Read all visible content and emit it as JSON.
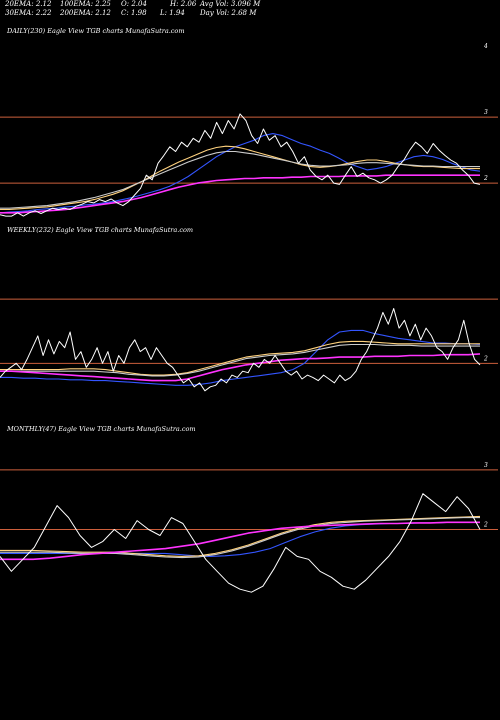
{
  "header": {
    "ema20": "20EMA: 2.12",
    "ema100": "100EMA: 2.25",
    "open": "O: 2.04",
    "high": "H: 2.06",
    "avg_vol": "Avg Vol: 3.096  M",
    "ema30": "30EMA: 2.22",
    "ema200": "200EMA: 2.12",
    "close": "C: 1.98",
    "low": "L: 1.94",
    "day_vol": "Day Vol: 2.68  M"
  },
  "chart_data": [
    {
      "type": "line",
      "title": "DAILY(230) Eagle  View  TGB charts MunafaSutra.com",
      "y_ticks": [
        "4",
        "3",
        "2"
      ],
      "y_tick_values": [
        4,
        3,
        2
      ],
      "ylim": [
        1.35,
        4.2
      ],
      "h_lines": [
        3.0,
        2.0
      ],
      "line_color": "#cd5f3c",
      "series": [
        {
          "color": "#ffffff",
          "values": [
            1.52,
            1.5,
            1.5,
            1.55,
            1.5,
            1.55,
            1.58,
            1.54,
            1.58,
            1.62,
            1.6,
            1.62,
            1.6,
            1.65,
            1.68,
            1.72,
            1.7,
            1.75,
            1.72,
            1.76,
            1.7,
            1.66,
            1.72,
            1.82,
            1.92,
            2.12,
            2.05,
            2.3,
            2.42,
            2.55,
            2.48,
            2.62,
            2.55,
            2.68,
            2.62,
            2.8,
            2.68,
            2.92,
            2.75,
            2.95,
            2.82,
            3.05,
            2.95,
            2.72,
            2.6,
            2.82,
            2.65,
            2.72,
            2.55,
            2.62,
            2.48,
            2.3,
            2.4,
            2.2,
            2.1,
            2.05,
            2.12,
            2.0,
            1.98,
            2.12,
            2.25,
            2.1,
            2.15,
            2.08,
            2.05,
            2.0,
            2.05,
            2.12,
            2.25,
            2.35,
            2.5,
            2.62,
            2.55,
            2.45,
            2.6,
            2.5,
            2.42,
            2.35,
            2.3,
            2.2,
            2.12,
            2.0,
            1.98
          ]
        },
        {
          "color": "#3355ff",
          "values": [
            1.55,
            1.56,
            1.57,
            1.58,
            1.6,
            1.61,
            1.62,
            1.64,
            1.65,
            1.67,
            1.68,
            1.7,
            1.72,
            1.75,
            1.78,
            1.82,
            1.86,
            1.9,
            1.95,
            2.02,
            2.1,
            2.2,
            2.3,
            2.4,
            2.48,
            2.55,
            2.6,
            2.65,
            2.72,
            2.75,
            2.72,
            2.66,
            2.6,
            2.56,
            2.5,
            2.45,
            2.38,
            2.3,
            2.25,
            2.2,
            2.22,
            2.25,
            2.3,
            2.35,
            2.4,
            2.42,
            2.4,
            2.36,
            2.3,
            2.25,
            2.2,
            2.18
          ]
        },
        {
          "color": "#ffd27f",
          "values": [
            1.6,
            1.6,
            1.61,
            1.62,
            1.63,
            1.64,
            1.66,
            1.68,
            1.7,
            1.72,
            1.75,
            1.79,
            1.83,
            1.88,
            1.95,
            2.02,
            2.1,
            2.18,
            2.25,
            2.32,
            2.38,
            2.44,
            2.5,
            2.54,
            2.56,
            2.55,
            2.52,
            2.48,
            2.44,
            2.4,
            2.36,
            2.32,
            2.28,
            2.25,
            2.24,
            2.25,
            2.27,
            2.3,
            2.33,
            2.35,
            2.35,
            2.33,
            2.3,
            2.28,
            2.26,
            2.25,
            2.25,
            2.24,
            2.23,
            2.22,
            2.22,
            2.22
          ]
        },
        {
          "color": "#cccccc",
          "values": [
            1.62,
            1.62,
            1.63,
            1.64,
            1.65,
            1.66,
            1.68,
            1.7,
            1.72,
            1.75,
            1.78,
            1.82,
            1.86,
            1.9,
            1.96,
            2.02,
            2.08,
            2.14,
            2.2,
            2.26,
            2.32,
            2.37,
            2.42,
            2.46,
            2.48,
            2.48,
            2.46,
            2.44,
            2.41,
            2.38,
            2.35,
            2.32,
            2.29,
            2.27,
            2.26,
            2.26,
            2.27,
            2.28,
            2.3,
            2.31,
            2.31,
            2.3,
            2.29,
            2.28,
            2.27,
            2.26,
            2.26,
            2.25,
            2.25,
            2.25,
            2.25,
            2.25
          ]
        },
        {
          "color": "#ff33ff",
          "values": [
            1.55,
            1.55,
            1.55,
            1.56,
            1.57,
            1.58,
            1.59,
            1.6,
            1.62,
            1.64,
            1.66,
            1.68,
            1.7,
            1.72,
            1.75,
            1.78,
            1.82,
            1.86,
            1.9,
            1.94,
            1.97,
            2.0,
            2.02,
            2.04,
            2.05,
            2.06,
            2.07,
            2.07,
            2.08,
            2.08,
            2.08,
            2.09,
            2.09,
            2.1,
            2.1,
            2.1,
            2.1,
            2.11,
            2.11,
            2.11,
            2.11,
            2.12,
            2.12,
            2.12,
            2.12,
            2.12,
            2.12,
            2.12,
            2.12,
            2.12,
            2.12,
            2.12
          ]
        }
      ]
    },
    {
      "type": "line",
      "title": "WEEKLY(232) Eagle  View  TGB charts MunafaSutra.com",
      "y_ticks": [
        "2"
      ],
      "y_tick_values": [
        2
      ],
      "ylim": [
        1.2,
        3.6
      ],
      "h_lines": [
        2.82,
        2.0
      ],
      "line_color": "#cd5f3c",
      "series": [
        {
          "color": "#ffffff",
          "values": [
            1.82,
            1.9,
            1.95,
            2.0,
            1.92,
            2.05,
            2.2,
            2.35,
            2.1,
            2.3,
            2.12,
            2.28,
            2.2,
            2.4,
            2.05,
            2.15,
            1.95,
            2.05,
            2.2,
            2.0,
            2.15,
            1.9,
            2.1,
            2.0,
            2.2,
            2.3,
            2.15,
            2.2,
            2.05,
            2.2,
            2.1,
            2.0,
            1.95,
            1.85,
            1.75,
            1.8,
            1.7,
            1.75,
            1.65,
            1.7,
            1.72,
            1.8,
            1.75,
            1.85,
            1.82,
            1.9,
            1.88,
            2.0,
            1.95,
            2.05,
            2.0,
            2.1,
            2.0,
            1.9,
            1.85,
            1.9,
            1.8,
            1.85,
            1.82,
            1.78,
            1.85,
            1.8,
            1.75,
            1.85,
            1.78,
            1.82,
            1.9,
            2.05,
            2.15,
            2.3,
            2.45,
            2.65,
            2.5,
            2.7,
            2.45,
            2.55,
            2.35,
            2.5,
            2.3,
            2.45,
            2.35,
            2.2,
            2.15,
            2.05,
            2.2,
            2.3,
            2.55,
            2.25,
            2.05,
            1.98
          ]
        },
        {
          "color": "#3355ff",
          "values": [
            1.82,
            1.82,
            1.81,
            1.81,
            1.8,
            1.8,
            1.79,
            1.79,
            1.78,
            1.78,
            1.77,
            1.76,
            1.75,
            1.74,
            1.73,
            1.72,
            1.72,
            1.73,
            1.75,
            1.78,
            1.8,
            1.82,
            1.84,
            1.86,
            1.88,
            1.92,
            2.0,
            2.15,
            2.3,
            2.4,
            2.42,
            2.42,
            2.38,
            2.35,
            2.32,
            2.3,
            2.28,
            2.26,
            2.26,
            2.25,
            2.25,
            2.24
          ]
        },
        {
          "color": "#ffd27f",
          "values": [
            1.92,
            1.92,
            1.92,
            1.92,
            1.92,
            1.92,
            1.93,
            1.93,
            1.93,
            1.92,
            1.9,
            1.88,
            1.86,
            1.85,
            1.85,
            1.86,
            1.88,
            1.92,
            1.96,
            2.0,
            2.04,
            2.08,
            2.1,
            2.12,
            2.13,
            2.14,
            2.16,
            2.2,
            2.24,
            2.27,
            2.28,
            2.28,
            2.27,
            2.26,
            2.25,
            2.25,
            2.25,
            2.25,
            2.25,
            2.25,
            2.25,
            2.25
          ]
        },
        {
          "color": "#cccccc",
          "values": [
            1.9,
            1.9,
            1.9,
            1.9,
            1.9,
            1.9,
            1.9,
            1.9,
            1.9,
            1.89,
            1.88,
            1.86,
            1.85,
            1.84,
            1.84,
            1.85,
            1.87,
            1.9,
            1.94,
            1.98,
            2.02,
            2.06,
            2.08,
            2.1,
            2.11,
            2.12,
            2.14,
            2.17,
            2.2,
            2.23,
            2.24,
            2.24,
            2.24,
            2.23,
            2.23,
            2.23,
            2.22,
            2.22,
            2.22,
            2.22,
            2.22,
            2.22
          ]
        },
        {
          "color": "#ff33ff",
          "values": [
            1.9,
            1.9,
            1.89,
            1.88,
            1.87,
            1.86,
            1.85,
            1.84,
            1.83,
            1.82,
            1.81,
            1.8,
            1.79,
            1.78,
            1.78,
            1.78,
            1.8,
            1.84,
            1.88,
            1.92,
            1.95,
            1.98,
            2.0,
            2.02,
            2.04,
            2.05,
            2.06,
            2.06,
            2.07,
            2.08,
            2.08,
            2.08,
            2.09,
            2.09,
            2.09,
            2.1,
            2.1,
            2.1,
            2.11,
            2.11,
            2.11,
            2.12
          ]
        }
      ]
    },
    {
      "type": "line",
      "title": "MONTHLY(47) Eagle  View  TGB charts MunafaSutra.com",
      "y_ticks": [
        "3",
        "2"
      ],
      "y_tick_values": [
        3,
        2
      ],
      "ylim": [
        0.4,
        3.55
      ],
      "h_lines": [
        3.0,
        2.0
      ],
      "line_color": "#cd5f3c",
      "series": [
        {
          "color": "#ffffff",
          "values": [
            1.55,
            1.3,
            1.5,
            1.7,
            2.05,
            2.4,
            2.2,
            1.9,
            1.7,
            1.8,
            2.0,
            1.85,
            2.15,
            2.0,
            1.9,
            2.2,
            2.1,
            1.8,
            1.5,
            1.3,
            1.1,
            1.0,
            0.95,
            1.05,
            1.35,
            1.7,
            1.55,
            1.5,
            1.3,
            1.2,
            1.05,
            1.0,
            1.15,
            1.35,
            1.55,
            1.8,
            2.15,
            2.6,
            2.45,
            2.3,
            2.55,
            2.35,
            2.0
          ]
        },
        {
          "color": "#3355ff",
          "values": [
            1.6,
            1.6,
            1.6,
            1.6,
            1.6,
            1.6,
            1.6,
            1.6,
            1.6,
            1.6,
            1.6,
            1.6,
            1.58,
            1.56,
            1.55,
            1.56,
            1.58,
            1.62,
            1.68,
            1.78,
            1.88,
            1.96,
            2.02,
            2.06,
            2.08,
            2.09,
            2.1,
            2.1,
            2.11,
            2.11,
            2.12,
            2.12,
            2.12
          ]
        },
        {
          "color": "#ffd27f",
          "values": [
            1.65,
            1.65,
            1.65,
            1.64,
            1.63,
            1.62,
            1.62,
            1.62,
            1.6,
            1.58,
            1.56,
            1.55,
            1.56,
            1.6,
            1.66,
            1.74,
            1.84,
            1.94,
            2.02,
            2.08,
            2.12,
            2.14,
            2.15,
            2.16,
            2.17,
            2.18,
            2.19,
            2.2,
            2.21,
            2.22
          ]
        },
        {
          "color": "#cccccc",
          "values": [
            1.62,
            1.62,
            1.62,
            1.62,
            1.61,
            1.6,
            1.6,
            1.6,
            1.58,
            1.56,
            1.54,
            1.53,
            1.54,
            1.58,
            1.64,
            1.72,
            1.82,
            1.92,
            2.0,
            2.06,
            2.1,
            2.12,
            2.14,
            2.15,
            2.16,
            2.17,
            2.18,
            2.19,
            2.2,
            2.2
          ]
        },
        {
          "color": "#ff33ff",
          "values": [
            1.5,
            1.5,
            1.5,
            1.52,
            1.55,
            1.58,
            1.6,
            1.62,
            1.64,
            1.66,
            1.68,
            1.72,
            1.76,
            1.82,
            1.88,
            1.94,
            1.98,
            2.02,
            2.04,
            2.06,
            2.07,
            2.08,
            2.09,
            2.1,
            2.1,
            2.11,
            2.11,
            2.12,
            2.12,
            2.12
          ]
        }
      ]
    }
  ]
}
